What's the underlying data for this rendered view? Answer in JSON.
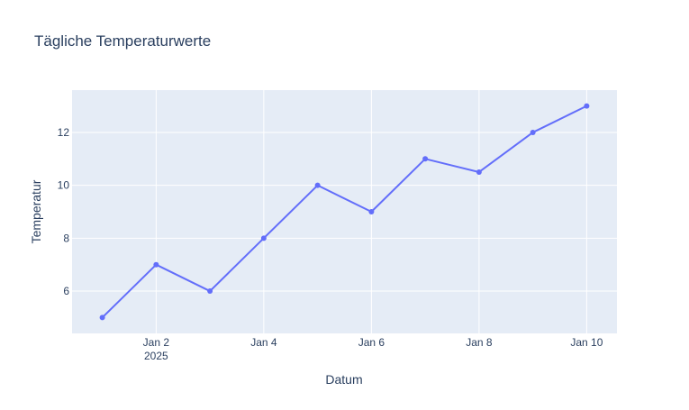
{
  "chart_data": {
    "type": "line",
    "title": "Tägliche Temperaturwerte",
    "xlabel": "Datum",
    "ylabel": "Temperatur",
    "x": [
      "2025-01-01",
      "2025-01-02",
      "2025-01-03",
      "2025-01-04",
      "2025-01-05",
      "2025-01-06",
      "2025-01-07",
      "2025-01-08",
      "2025-01-09",
      "2025-01-10"
    ],
    "series": [
      {
        "values": [
          5,
          7,
          6,
          8,
          10,
          9,
          11,
          10.5,
          12,
          13
        ],
        "color": "#636efa",
        "mode": "lines+markers"
      }
    ],
    "xlim": [
      "2025-01-01",
      "2025-01-10"
    ],
    "ylim": [
      4.4,
      13.6
    ],
    "x_ticks": [
      {
        "value": "2025-01-02",
        "label": "Jan 2",
        "sublabel": "2025"
      },
      {
        "value": "2025-01-04",
        "label": "Jan 4"
      },
      {
        "value": "2025-01-06",
        "label": "Jan 6"
      },
      {
        "value": "2025-01-08",
        "label": "Jan 8"
      },
      {
        "value": "2025-01-10",
        "label": "Jan 10"
      }
    ],
    "y_ticks": [
      {
        "value": 6,
        "label": "6"
      },
      {
        "value": 8,
        "label": "8"
      },
      {
        "value": 10,
        "label": "10"
      },
      {
        "value": 12,
        "label": "12"
      }
    ],
    "grid": true,
    "plot_background": "#e5ecf6",
    "gridline_color": "#ffffff",
    "text_color": "#2a3f5f"
  }
}
